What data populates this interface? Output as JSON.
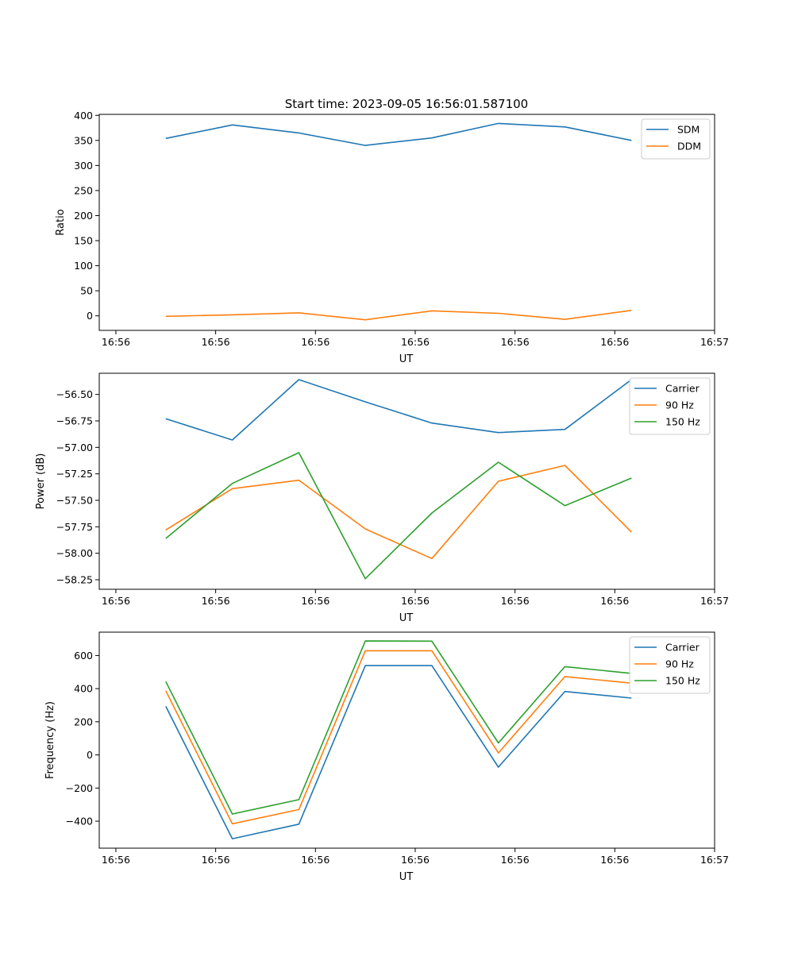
{
  "figure_title": "Start time: 2023-09-05 16:56:01.587100",
  "colors": {
    "c0": "#1f77b4",
    "c1": "#ff7f0e",
    "c2": "#2ca02c"
  },
  "chart_data": [
    {
      "type": "line",
      "title": "Start time: 2023-09-05 16:56:01.587100",
      "xlabel": "UT",
      "ylabel": "Ratio",
      "x": [
        1,
        2,
        3,
        4,
        5,
        6,
        7,
        8
      ],
      "xlim": [
        0,
        9.25
      ],
      "xticks": [
        0.25,
        1.75,
        3.25,
        4.75,
        6.25,
        7.75,
        9.25
      ],
      "xtick_labels": [
        "16:56",
        "16:56",
        "16:56",
        "16:56",
        "16:56",
        "16:56",
        "16:57"
      ],
      "ylim": [
        -29,
        402
      ],
      "yticks": [
        0,
        50,
        100,
        150,
        200,
        250,
        300,
        350,
        400
      ],
      "ytick_labels": [
        "0",
        "50",
        "100",
        "150",
        "200",
        "250",
        "300",
        "350",
        "400"
      ],
      "legend_position": "top-right",
      "series": [
        {
          "name": "SDM",
          "color_key": "c0",
          "values": [
            354,
            381,
            365,
            340,
            355,
            384,
            377,
            350
          ]
        },
        {
          "name": "DDM",
          "color_key": "c1",
          "values": [
            -1,
            2,
            6,
            -8,
            10,
            5,
            -7,
            11
          ]
        }
      ]
    },
    {
      "type": "line",
      "title": "",
      "xlabel": "UT",
      "ylabel": "Power (dB)",
      "x": [
        1,
        2,
        3,
        4,
        5,
        6,
        7,
        8
      ],
      "xlim": [
        0,
        9.25
      ],
      "xticks": [
        0.25,
        1.75,
        3.25,
        4.75,
        6.25,
        7.75,
        9.25
      ],
      "xtick_labels": [
        "16:56",
        "16:56",
        "16:56",
        "16:56",
        "16:56",
        "16:56",
        "16:57"
      ],
      "ylim": [
        -58.34,
        -56.3
      ],
      "yticks": [
        -58.25,
        -58.0,
        -57.75,
        -57.5,
        -57.25,
        -57.0,
        -56.75,
        -56.5
      ],
      "ytick_labels": [
        "−58.25",
        "−58.00",
        "−57.75",
        "−57.50",
        "−57.25",
        "−57.00",
        "−56.75",
        "−56.50"
      ],
      "legend_position": "top-right",
      "series": [
        {
          "name": "Carrier",
          "color_key": "c0",
          "values": [
            -56.73,
            -56.93,
            -56.36,
            -56.57,
            -56.77,
            -56.86,
            -56.83,
            -56.36
          ]
        },
        {
          "name": "90 Hz",
          "color_key": "c1",
          "values": [
            -57.78,
            -57.39,
            -57.31,
            -57.77,
            -58.05,
            -57.32,
            -57.17,
            -57.8
          ]
        },
        {
          "name": "150 Hz",
          "color_key": "c2",
          "values": [
            -57.86,
            -57.34,
            -57.05,
            -58.24,
            -57.62,
            -57.14,
            -57.55,
            -57.29
          ]
        }
      ]
    },
    {
      "type": "line",
      "title": "",
      "xlabel": "UT",
      "ylabel": "Frequency (Hz)",
      "x": [
        1,
        2,
        3,
        4,
        5,
        6,
        7,
        8
      ],
      "xlim": [
        0,
        9.25
      ],
      "xticks": [
        0.25,
        1.75,
        3.25,
        4.75,
        6.25,
        7.75,
        9.25
      ],
      "xtick_labels": [
        "16:56",
        "16:56",
        "16:56",
        "16:56",
        "16:56",
        "16:56",
        "16:57"
      ],
      "ylim": [
        -563,
        741
      ],
      "yticks": [
        -400,
        -200,
        0,
        200,
        400,
        600
      ],
      "ytick_labels": [
        "−400",
        "−200",
        "0",
        "200",
        "400",
        "600"
      ],
      "legend_position": "top-right",
      "series": [
        {
          "name": "Carrier",
          "color_key": "c0",
          "values": [
            293,
            -506,
            -418,
            539,
            539,
            -74,
            383,
            343
          ]
        },
        {
          "name": "90 Hz",
          "color_key": "c1",
          "values": [
            387,
            -416,
            -330,
            629,
            629,
            12,
            473,
            433
          ]
        },
        {
          "name": "150 Hz",
          "color_key": "c2",
          "values": [
            443,
            -357,
            -270,
            688,
            687,
            72,
            533,
            492
          ]
        }
      ]
    }
  ]
}
